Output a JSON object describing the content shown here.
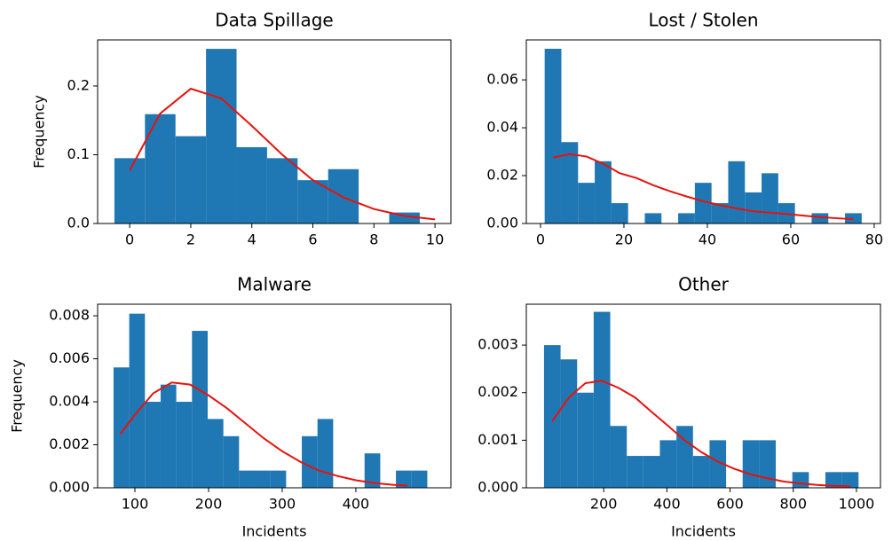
{
  "chart_data": [
    {
      "type": "histogram",
      "title": "Data Spillage",
      "ylabel": "Frequency",
      "bins": [
        -0.5,
        0.5,
        1.5,
        2.5,
        3.5,
        4.5,
        5.5,
        6.5,
        7.5,
        8.5,
        9.5
      ],
      "values": [
        0.095,
        0.159,
        0.127,
        0.254,
        0.111,
        0.095,
        0.063,
        0.079,
        0,
        0.016
      ],
      "color": "#1f77b4",
      "curve": {
        "x": [
          0,
          1,
          2,
          3,
          4,
          5,
          6,
          7,
          8,
          9,
          10
        ],
        "y": [
          0.077,
          0.16,
          0.196,
          0.182,
          0.142,
          0.1,
          0.063,
          0.038,
          0.021,
          0.011,
          0.006
        ],
        "color": "#e8120c"
      },
      "xlim": [
        -1.05,
        10.52
      ],
      "ylim": [
        0,
        0.267
      ],
      "xticks": [
        0,
        2,
        4,
        6,
        8,
        10
      ],
      "yticks": [
        {
          "value": 0,
          "label": "0.0"
        },
        0.1,
        0.2
      ]
    },
    {
      "type": "histogram",
      "title": "Lost / Stolen",
      "bins": [
        1,
        5,
        9,
        13,
        17,
        21,
        25,
        29,
        33,
        37,
        41,
        45,
        49,
        53,
        57,
        61,
        65,
        69,
        73,
        77
      ],
      "values": [
        0.073,
        0.034,
        0.017,
        0.026,
        0.0085,
        0,
        0.0043,
        0,
        0.0043,
        0.017,
        0.0085,
        0.026,
        0.013,
        0.021,
        0.0085,
        0,
        0.0043,
        0,
        0.0043
      ],
      "color": "#1f77b4",
      "curve": {
        "x": [
          3,
          7,
          11,
          15,
          19,
          23,
          27,
          31,
          35,
          39,
          43,
          47,
          51,
          55,
          59,
          63,
          67,
          71,
          75
        ],
        "y": [
          0.0275,
          0.029,
          0.028,
          0.025,
          0.021,
          0.019,
          0.016,
          0.0135,
          0.0113,
          0.0093,
          0.0077,
          0.0063,
          0.0051,
          0.0045,
          0.004,
          0.0033,
          0.0027,
          0.0022,
          0.0018
        ],
        "color": "#e8120c"
      },
      "xlim": [
        -3.4,
        81.5
      ],
      "ylim": [
        0,
        0.0767
      ],
      "xticks": [
        0,
        20,
        40,
        60,
        80
      ],
      "yticks": [
        {
          "value": 0,
          "label": "0.00"
        },
        0.02,
        0.04,
        0.06
      ]
    },
    {
      "type": "histogram",
      "title": "Malware",
      "ylabel": "Frequency",
      "xlabel": "Incidents",
      "bins": [
        71,
        92.3,
        113.6,
        134.9,
        156.2,
        177.5,
        198.8,
        220.1,
        241.4,
        262.7,
        284,
        305.3,
        326.6,
        347.9,
        369.2,
        390.5,
        411.8,
        433.1,
        454.4,
        475.7,
        497
      ],
      "values": [
        0.0056,
        0.0081,
        0.004,
        0.0048,
        0.004,
        0.0073,
        0.0032,
        0.0024,
        0.0008,
        0.0008,
        0.0008,
        0,
        0.0024,
        0.0032,
        0,
        0,
        0.0016,
        0,
        0.0008,
        0.0008
      ],
      "color": "#1f77b4",
      "curve": {
        "x": [
          80,
          100,
          125,
          150,
          175,
          200,
          225,
          250,
          275,
          300,
          325,
          350,
          375,
          400,
          425,
          450,
          470
        ],
        "y": [
          0.0025,
          0.0034,
          0.0044,
          0.0049,
          0.0048,
          0.0043,
          0.0037,
          0.003,
          0.0023,
          0.0017,
          0.0012,
          0.0008,
          0.00055,
          0.00035,
          0.00022,
          0.00014,
          0.0001
        ],
        "color": "#e8120c"
      },
      "xlim": [
        49.4,
        529
      ],
      "ylim": [
        0,
        0.00854
      ],
      "xticks": [
        100,
        200,
        300,
        400
      ],
      "yticks": [
        {
          "value": 0,
          "label": "0.000"
        },
        {
          "value": 0.002,
          "label": "0.002"
        },
        {
          "value": 0.004,
          "label": "0.004"
        },
        {
          "value": 0.006,
          "label": "0.006"
        },
        {
          "value": 0.008,
          "label": "0.008"
        }
      ]
    },
    {
      "type": "histogram",
      "title": "Other",
      "xlabel": "Incidents",
      "bins": [
        11,
        63.4,
        115.8,
        168.2,
        220.6,
        273,
        325.4,
        377.8,
        430.2,
        482.6,
        535,
        587.4,
        639.8,
        692.2,
        744.6,
        797,
        849.4,
        901.8,
        954.2,
        1006.6
      ],
      "values": [
        0.003,
        0.0027,
        0.002,
        0.0037,
        0.0013,
        0.00067,
        0.00067,
        0.001,
        0.0013,
        0.00067,
        0.001,
        0,
        0.001,
        0.001,
        0,
        0.00033,
        0,
        0.00033,
        0.00033
      ],
      "color": "#1f77b4",
      "curve": {
        "x": [
          37,
          90,
          142,
          194,
          247,
          299,
          351,
          404,
          456,
          509,
          561,
          613,
          666,
          718,
          771,
          823,
          875,
          928,
          980
        ],
        "y": [
          0.0014,
          0.0019,
          0.0022,
          0.00225,
          0.0021,
          0.0019,
          0.0016,
          0.0013,
          0.001,
          0.00075,
          0.00055,
          0.0004,
          0.00028,
          0.0002,
          0.00013,
          9e-05,
          6e-05,
          4e-05,
          3e-05
        ],
        "color": "#e8120c"
      },
      "xlim": [
        -45,
        1076
      ],
      "ylim": [
        0,
        0.00386
      ],
      "xticks": [
        200,
        400,
        600,
        800,
        1000
      ],
      "yticks": [
        {
          "value": 0,
          "label": "0.000"
        },
        {
          "value": 0.001,
          "label": "0.001"
        },
        {
          "value": 0.002,
          "label": "0.002"
        },
        {
          "value": 0.003,
          "label": "0.003"
        }
      ]
    }
  ]
}
